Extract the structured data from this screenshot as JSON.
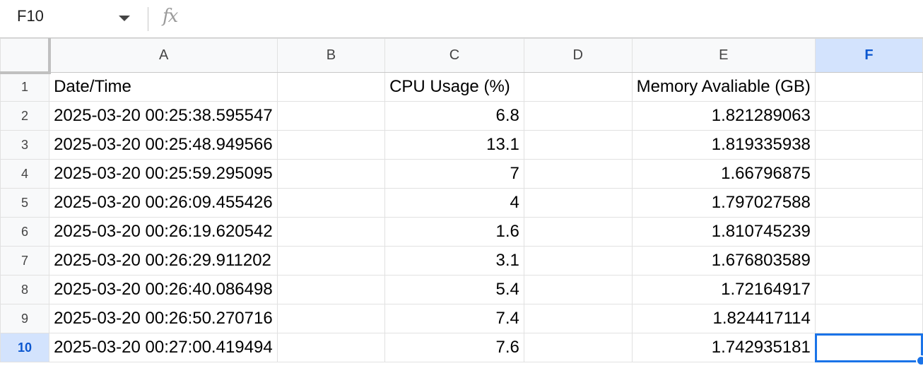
{
  "formula_bar": {
    "name_box": "F10",
    "fx_label": "fx",
    "formula_value": ""
  },
  "columns": [
    "A",
    "B",
    "C",
    "D",
    "E",
    "F"
  ],
  "active_cell": {
    "column": "F",
    "row": 10
  },
  "rows": [
    {
      "num": "1",
      "A": "Date/Time",
      "B": "",
      "C": "CPU Usage (%)",
      "D": "",
      "E": "Memory Avaliable (GB)",
      "F": ""
    },
    {
      "num": "2",
      "A": "2025-03-20 00:25:38.595547",
      "B": "",
      "C": "6.8",
      "D": "",
      "E": "1.821289063",
      "F": ""
    },
    {
      "num": "3",
      "A": "2025-03-20 00:25:48.949566",
      "B": "",
      "C": "13.1",
      "D": "",
      "E": "1.819335938",
      "F": ""
    },
    {
      "num": "4",
      "A": "2025-03-20 00:25:59.295095",
      "B": "",
      "C": "7",
      "D": "",
      "E": "1.66796875",
      "F": ""
    },
    {
      "num": "5",
      "A": "2025-03-20 00:26:09.455426",
      "B": "",
      "C": "4",
      "D": "",
      "E": "1.797027588",
      "F": ""
    },
    {
      "num": "6",
      "A": "2025-03-20 00:26:19.620542",
      "B": "",
      "C": "1.6",
      "D": "",
      "E": "1.810745239",
      "F": ""
    },
    {
      "num": "7",
      "A": "2025-03-20 00:26:29.911202",
      "B": "",
      "C": "3.1",
      "D": "",
      "E": "1.676803589",
      "F": ""
    },
    {
      "num": "8",
      "A": "2025-03-20 00:26:40.086498",
      "B": "",
      "C": "5.4",
      "D": "",
      "E": "1.72164917",
      "F": ""
    },
    {
      "num": "9",
      "A": "2025-03-20 00:26:50.270716",
      "B": "",
      "C": "7.4",
      "D": "",
      "E": "1.824417114",
      "F": ""
    },
    {
      "num": "10",
      "A": "2025-03-20 00:27:00.419494",
      "B": "",
      "C": "7.6",
      "D": "",
      "E": "1.742935181",
      "F": ""
    }
  ]
}
